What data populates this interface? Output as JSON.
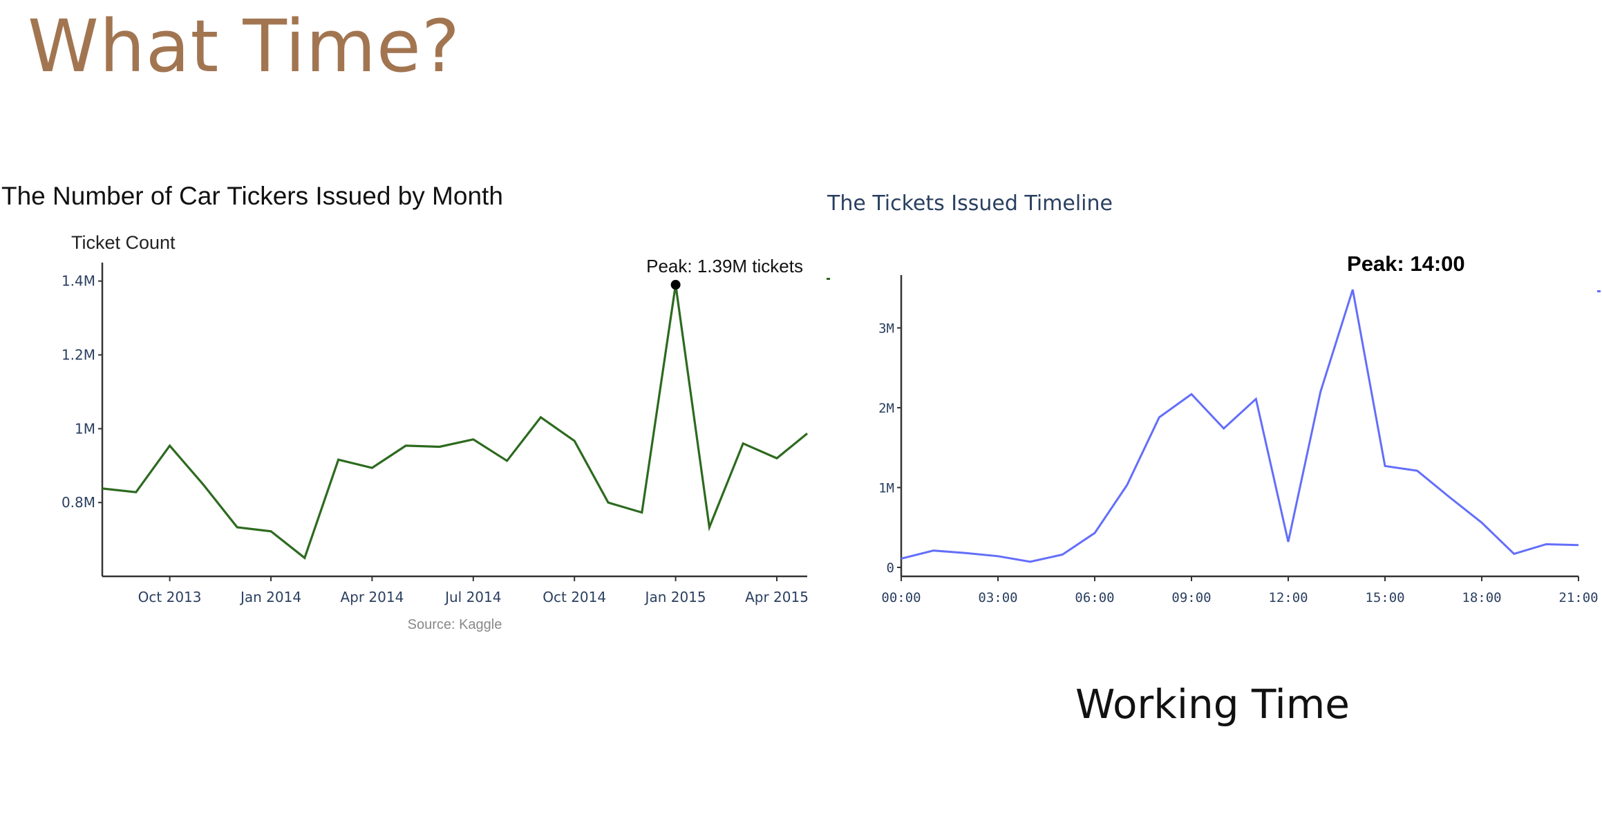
{
  "slide": {
    "title": "What Time?",
    "caption": "Working Time"
  },
  "chart_data": [
    {
      "type": "line",
      "title": "The Number of Car Tickers Issued by Month",
      "ylabel": "Ticket Count",
      "xlabel": "",
      "source": "Source: Kaggle",
      "x_tick_labels": [
        "Oct 2013",
        "Jan 2014",
        "Apr 2014",
        "Jul 2014",
        "Oct 2014",
        "Jan 2015",
        "Apr 2015"
      ],
      "y_ticks": [
        {
          "value": 0.8,
          "label": "0.8M"
        },
        {
          "value": 1.0,
          "label": "1M"
        },
        {
          "value": 1.2,
          "label": "1.2M"
        },
        {
          "value": 1.4,
          "label": "1.4M"
        }
      ],
      "ylim": [
        0.6,
        1.45
      ],
      "x": [
        "2013-08",
        "2013-09",
        "2013-10",
        "2013-11",
        "2013-12",
        "2014-01",
        "2014-02",
        "2014-03",
        "2014-04",
        "2014-05",
        "2014-06",
        "2014-07",
        "2014-08",
        "2014-09",
        "2014-10",
        "2014-11",
        "2014-12",
        "2015-01",
        "2015-02",
        "2015-03",
        "2015-04",
        "2015-05"
      ],
      "series": [
        {
          "values": [
            0.838,
            0.828,
            0.954,
            0.848,
            0.733,
            0.722,
            0.65,
            0.916,
            0.894,
            0.954,
            0.951,
            0.971,
            0.913,
            1.031,
            0.967,
            0.8,
            0.773,
            1.39,
            0.733,
            0.96,
            0.92,
            0.987
          ],
          "color": "#2d6a1f"
        }
      ],
      "annotation": {
        "text": "Peak: 1.39M tickets",
        "x": "2015-01",
        "y": 1.39
      }
    },
    {
      "type": "line",
      "title": "The Tickets Issued Timeline",
      "xlabel": "",
      "ylabel": "",
      "x_tick_labels": [
        "00:00",
        "03:00",
        "06:00",
        "09:00",
        "12:00",
        "15:00",
        "18:00",
        "21:00"
      ],
      "y_ticks": [
        {
          "value": 0,
          "label": "0"
        },
        {
          "value": 1,
          "label": "1M"
        },
        {
          "value": 2,
          "label": "2M"
        },
        {
          "value": 3,
          "label": "3M"
        }
      ],
      "ylim": [
        -0.1,
        3.75
      ],
      "xlim": [
        0,
        21
      ],
      "x": [
        0,
        1,
        2,
        3,
        4,
        5,
        6,
        7,
        8,
        9,
        10,
        11,
        12,
        13,
        14,
        15,
        16,
        17,
        18,
        19,
        20,
        21
      ],
      "series": [
        {
          "values": [
            0.11,
            0.21,
            0.18,
            0.14,
            0.07,
            0.16,
            0.43,
            1.03,
            1.88,
            2.17,
            1.74,
            2.11,
            0.32,
            2.2,
            3.48,
            1.27,
            1.21,
            0.88,
            0.56,
            0.17,
            0.29,
            0.28
          ],
          "color": "#636efa"
        }
      ],
      "annotation": {
        "text": "Peak: 14:00",
        "x": 14
      }
    }
  ]
}
